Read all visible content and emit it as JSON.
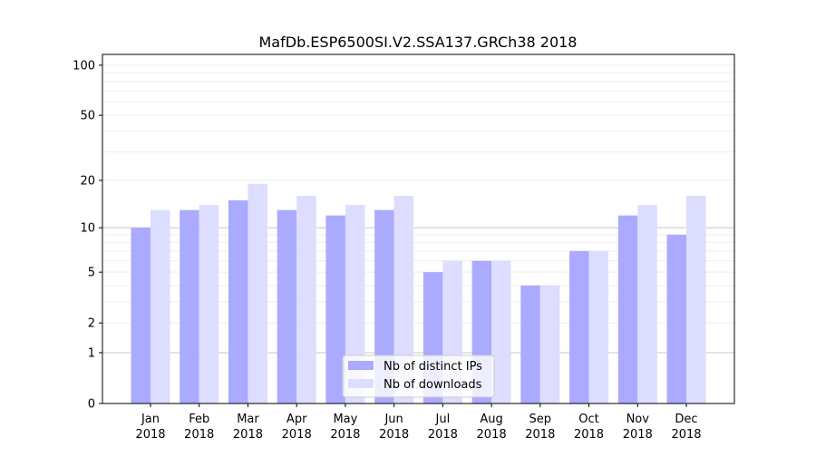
{
  "chart_data": {
    "type": "bar",
    "title": "MafDb.ESP6500SI.V2.SSA137.GRCh38 2018",
    "xlabel": "",
    "ylabel": "",
    "yscale": "log10(1+y)",
    "ylim": [
      0,
      116
    ],
    "yticks": [
      0,
      1,
      2,
      5,
      10,
      20,
      50,
      100
    ],
    "grid": true,
    "legend_position": "bottom-center",
    "categories": [
      "Jan\n2018",
      "Feb\n2018",
      "Mar\n2018",
      "Apr\n2018",
      "May\n2018",
      "Jun\n2018",
      "Jul\n2018",
      "Aug\n2018",
      "Sep\n2018",
      "Oct\n2018",
      "Nov\n2018",
      "Dec\n2018"
    ],
    "series": [
      {
        "name": "Nb of distinct IPs",
        "color": "#aaaaff",
        "values": [
          10,
          13,
          15,
          13,
          12,
          13,
          5,
          6,
          4,
          7,
          12,
          9
        ]
      },
      {
        "name": "Nb of downloads",
        "color": "#ddddff",
        "values": [
          13,
          14,
          19,
          16,
          14,
          16,
          6,
          6,
          4,
          7,
          14,
          16
        ]
      }
    ]
  }
}
